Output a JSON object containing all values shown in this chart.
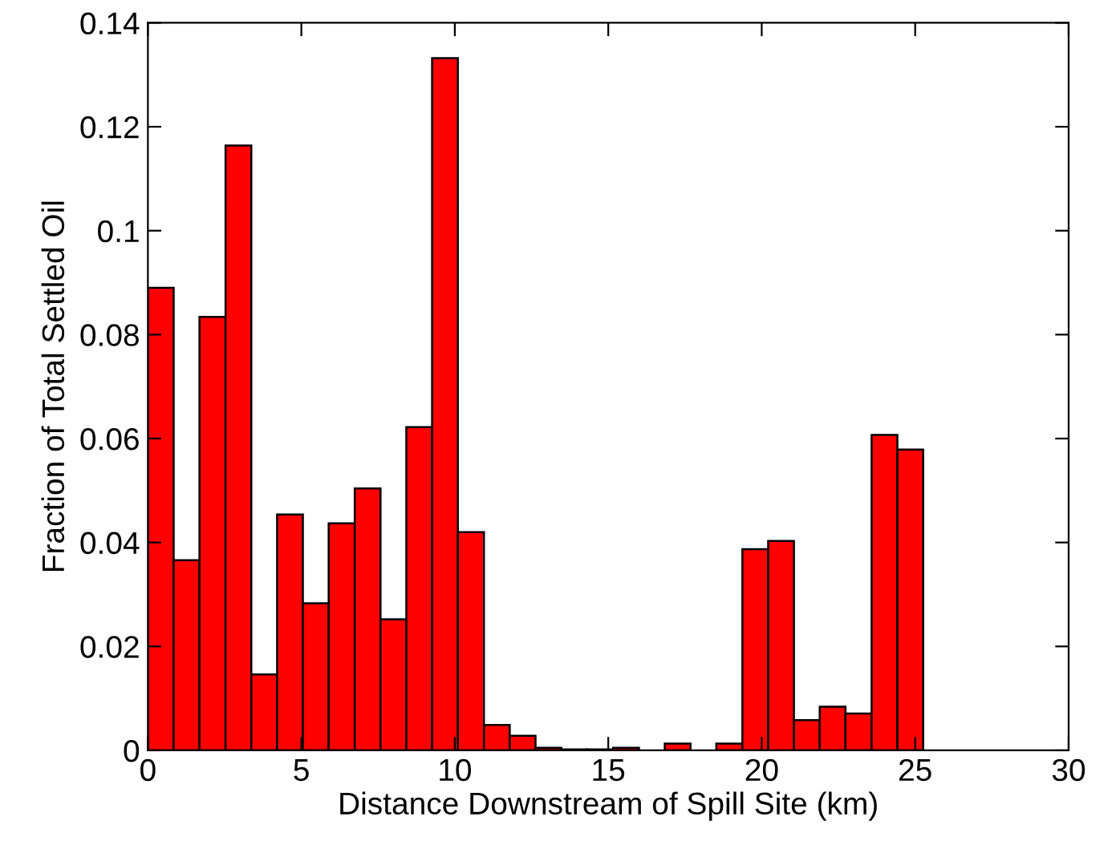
{
  "chart_data": {
    "type": "histogram",
    "xlabel": "Distance Downstream of Spill Site (km)",
    "ylabel": "Fraction of Total Settled Oil",
    "bins": [
      0,
      0.84,
      1.68,
      2.53,
      3.37,
      4.21,
      5.05,
      5.89,
      6.74,
      7.58,
      8.42,
      9.26,
      10.1,
      10.95,
      11.79,
      12.63,
      13.47,
      14.31,
      15.16,
      16.0,
      16.84,
      17.68,
      18.52,
      19.37,
      20.21,
      21.05,
      21.89,
      22.73,
      23.58,
      24.42,
      25.26
    ],
    "values": [
      0.089,
      0.0366,
      0.0834,
      0.1164,
      0.0146,
      0.0454,
      0.0283,
      0.0437,
      0.0504,
      0.0252,
      0.0622,
      0.1332,
      0.042,
      0.0049,
      0.0028,
      0.0005,
      0.0002,
      0.0002,
      0.0005,
      0,
      0.0013,
      0,
      0.0013,
      0.0387,
      0.0403,
      0.0058,
      0.0084,
      0.0071,
      0.0607,
      0.0579
    ],
    "color": "#ff0000",
    "xlim": [
      0,
      30
    ],
    "xticks": [
      0,
      5,
      10,
      15,
      20,
      25,
      30
    ],
    "ylim": [
      0,
      0.14
    ],
    "yticks": [
      0,
      0.02,
      0.04,
      0.06,
      0.08,
      0.1,
      0.12,
      0.14
    ],
    "grid": false
  }
}
